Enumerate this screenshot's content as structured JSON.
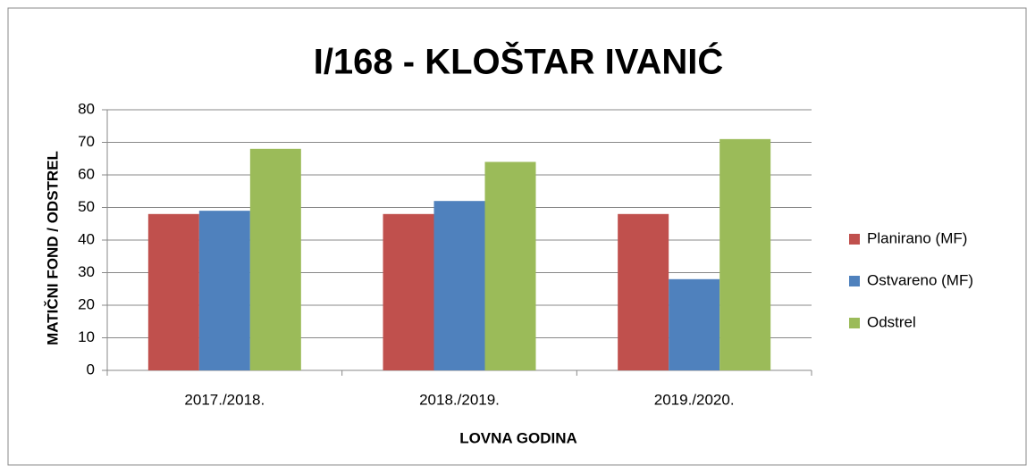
{
  "chart_data": {
    "type": "bar",
    "title": "I/168 - KLOŠTAR IVANIĆ",
    "x_label": "LOVNA GODINA",
    "y_label": "MATIČNI FOND / ODSTREL",
    "categories": [
      "2017./2018.",
      "2018./2019.",
      "2019./2020."
    ],
    "series": [
      {
        "name": "Planirano (MF)",
        "color": "#c0504d",
        "values": [
          48,
          48,
          48
        ]
      },
      {
        "name": "Ostvareno (MF)",
        "color": "#4f81bd",
        "values": [
          49,
          52,
          28
        ]
      },
      {
        "name": "Odstrel",
        "color": "#9bbb59",
        "values": [
          68,
          64,
          71
        ]
      }
    ],
    "ylim": [
      0,
      80
    ],
    "yticks": [
      0,
      10,
      20,
      30,
      40,
      50,
      60,
      70,
      80
    ],
    "grid": true,
    "legend": "right"
  }
}
